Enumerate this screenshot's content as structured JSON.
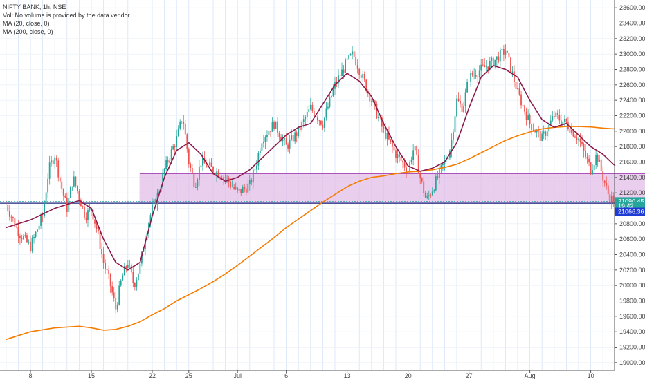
{
  "header": {
    "title": "NIFTY BANK, 1h, NSE",
    "volume_note": "Vol: No volume is provided by the data vendor.",
    "ma_fast_label": "MA (20, close, 0)",
    "ma_slow_label": "MA (200, close, 0)"
  },
  "colors": {
    "up": "#26a69a",
    "down": "#ef5350",
    "ma_fast": "#8b1a4a",
    "ma_slow": "#f57c00",
    "zone_fill": "#e1bee7",
    "zone_border": "#9c27b0",
    "support_line": "#1a237e",
    "grid": "#d6e4f5"
  },
  "chart_data": {
    "type": "candlestick",
    "title": "NIFTY BANK, 1h, NSE",
    "x_ticks": [
      "8",
      "15",
      "22",
      "25",
      "Jul",
      "6",
      "13",
      "20",
      "27",
      "Aug",
      "10"
    ],
    "y_ticks": [
      19000,
      19200,
      19400,
      19600,
      19800,
      20000,
      20200,
      20400,
      20600,
      20800,
      21000,
      21200,
      21400,
      21600,
      21800,
      22000,
      22200,
      22400,
      22600,
      22800,
      23000,
      23200,
      23400,
      23600
    ],
    "ylim": [
      18900,
      23700
    ],
    "price_markers": [
      {
        "label": "21090.45",
        "value": 21090.45,
        "color": "#26a69a"
      },
      {
        "label": "19:42",
        "value": 21030,
        "color": "#26a69a"
      },
      {
        "label": "21066.36",
        "value": 20955,
        "color": "#1e3bd6"
      }
    ],
    "zone": {
      "x_start_day": 9.0,
      "x_end_day": 50.5,
      "low": 21066.36,
      "high": 21450
    },
    "support_level": 21066.36,
    "price_path": [
      [
        -2.0,
        21050
      ],
      [
        -1.0,
        20700
      ],
      [
        0.0,
        20500
      ],
      [
        1.0,
        20900
      ],
      [
        1.5,
        21500
      ],
      [
        2.0,
        21700
      ],
      [
        2.5,
        21300
      ],
      [
        3.0,
        21000
      ],
      [
        3.5,
        21400
      ],
      [
        4.0,
        21150
      ],
      [
        4.5,
        20900
      ],
      [
        5.0,
        21000
      ],
      [
        5.5,
        20700
      ],
      [
        6.0,
        20300
      ],
      [
        6.5,
        20050
      ],
      [
        7.0,
        19700
      ],
      [
        7.5,
        20100
      ],
      [
        8.0,
        20300
      ],
      [
        8.5,
        20000
      ],
      [
        9.0,
        20250
      ],
      [
        9.5,
        20700
      ],
      [
        10.0,
        21000
      ],
      [
        10.5,
        21200
      ],
      [
        11.0,
        21500
      ],
      [
        12.0,
        21900
      ],
      [
        12.5,
        22200
      ],
      [
        13.0,
        21600
      ],
      [
        13.5,
        21300
      ],
      [
        14.0,
        21600
      ],
      [
        15.0,
        21500
      ],
      [
        16.0,
        21400
      ],
      [
        17.0,
        21200
      ],
      [
        18.0,
        21300
      ],
      [
        18.5,
        21550
      ],
      [
        19.0,
        21900
      ],
      [
        20.0,
        22100
      ],
      [
        21.0,
        21800
      ],
      [
        22.0,
        22000
      ],
      [
        23.0,
        22300
      ],
      [
        24.0,
        22100
      ],
      [
        25.0,
        22600
      ],
      [
        26.0,
        22900
      ],
      [
        26.5,
        23000
      ],
      [
        27.0,
        22800
      ],
      [
        28.0,
        22400
      ],
      [
        29.0,
        22000
      ],
      [
        30.0,
        21700
      ],
      [
        31.0,
        21500
      ],
      [
        31.5,
        21800
      ],
      [
        32.0,
        21400
      ],
      [
        32.5,
        21100
      ],
      [
        33.0,
        21250
      ],
      [
        34.0,
        21600
      ],
      [
        34.5,
        21800
      ],
      [
        35.0,
        22400
      ],
      [
        35.5,
        22300
      ],
      [
        36.0,
        22700
      ],
      [
        37.0,
        22800
      ],
      [
        38.0,
        22900
      ],
      [
        39.0,
        23050
      ],
      [
        40.0,
        22500
      ],
      [
        40.5,
        22300
      ],
      [
        41.0,
        22100
      ],
      [
        42.0,
        21900
      ],
      [
        43.0,
        22200
      ],
      [
        44.0,
        22100
      ],
      [
        45.0,
        21900
      ],
      [
        46.0,
        21500
      ],
      [
        46.5,
        21700
      ],
      [
        47.0,
        21400
      ],
      [
        47.5,
        21150
      ],
      [
        48.0,
        21090
      ]
    ],
    "ma_fast": [
      [
        -2.0,
        20750
      ],
      [
        0.0,
        20850
      ],
      [
        2.0,
        21000
      ],
      [
        4.0,
        21100
      ],
      [
        5.0,
        21000
      ],
      [
        6.0,
        20600
      ],
      [
        7.0,
        20300
      ],
      [
        8.0,
        20200
      ],
      [
        9.0,
        20300
      ],
      [
        10.0,
        20900
      ],
      [
        11.0,
        21400
      ],
      [
        12.0,
        21750
      ],
      [
        13.0,
        21850
      ],
      [
        14.0,
        21700
      ],
      [
        15.0,
        21450
      ],
      [
        16.0,
        21350
      ],
      [
        17.0,
        21400
      ],
      [
        18.0,
        21500
      ],
      [
        19.0,
        21650
      ],
      [
        20.0,
        21800
      ],
      [
        21.0,
        21950
      ],
      [
        22.0,
        22050
      ],
      [
        23.0,
        22100
      ],
      [
        24.0,
        22350
      ],
      [
        25.0,
        22600
      ],
      [
        26.0,
        22750
      ],
      [
        27.0,
        22650
      ],
      [
        28.0,
        22450
      ],
      [
        29.0,
        22100
      ],
      [
        30.0,
        21800
      ],
      [
        31.0,
        21550
      ],
      [
        32.0,
        21480
      ],
      [
        33.0,
        21520
      ],
      [
        34.0,
        21600
      ],
      [
        35.0,
        21850
      ],
      [
        36.0,
        22300
      ],
      [
        37.0,
        22700
      ],
      [
        38.0,
        22850
      ],
      [
        39.0,
        22800
      ],
      [
        40.0,
        22700
      ],
      [
        41.0,
        22400
      ],
      [
        42.0,
        22150
      ],
      [
        43.0,
        22050
      ],
      [
        44.0,
        22100
      ],
      [
        45.0,
        21950
      ],
      [
        46.0,
        21800
      ],
      [
        47.0,
        21700
      ],
      [
        48.0,
        21550
      ]
    ],
    "ma_slow": [
      [
        -2.0,
        19300
      ],
      [
        0.0,
        19400
      ],
      [
        2.0,
        19450
      ],
      [
        4.0,
        19470
      ],
      [
        5.0,
        19450
      ],
      [
        6.0,
        19420
      ],
      [
        7.0,
        19430
      ],
      [
        8.0,
        19470
      ],
      [
        9.0,
        19530
      ],
      [
        10.0,
        19620
      ],
      [
        11.0,
        19700
      ],
      [
        12.0,
        19800
      ],
      [
        13.0,
        19880
      ],
      [
        14.0,
        19960
      ],
      [
        15.0,
        20050
      ],
      [
        16.0,
        20150
      ],
      [
        17.0,
        20260
      ],
      [
        18.0,
        20380
      ],
      [
        19.0,
        20500
      ],
      [
        20.0,
        20620
      ],
      [
        21.0,
        20750
      ],
      [
        22.0,
        20860
      ],
      [
        23.0,
        20970
      ],
      [
        24.0,
        21080
      ],
      [
        25.0,
        21180
      ],
      [
        26.0,
        21280
      ],
      [
        27.0,
        21350
      ],
      [
        28.0,
        21400
      ],
      [
        29.0,
        21420
      ],
      [
        30.0,
        21450
      ],
      [
        31.0,
        21470
      ],
      [
        32.0,
        21480
      ],
      [
        33.0,
        21500
      ],
      [
        34.0,
        21530
      ],
      [
        35.0,
        21570
      ],
      [
        36.0,
        21640
      ],
      [
        37.0,
        21720
      ],
      [
        38.0,
        21800
      ],
      [
        39.0,
        21880
      ],
      [
        40.0,
        21940
      ],
      [
        41.0,
        21990
      ],
      [
        42.0,
        22030
      ],
      [
        43.0,
        22050
      ],
      [
        44.0,
        22060
      ],
      [
        45.0,
        22060
      ],
      [
        46.0,
        22055
      ],
      [
        47.0,
        22040
      ],
      [
        48.0,
        22030
      ]
    ]
  }
}
